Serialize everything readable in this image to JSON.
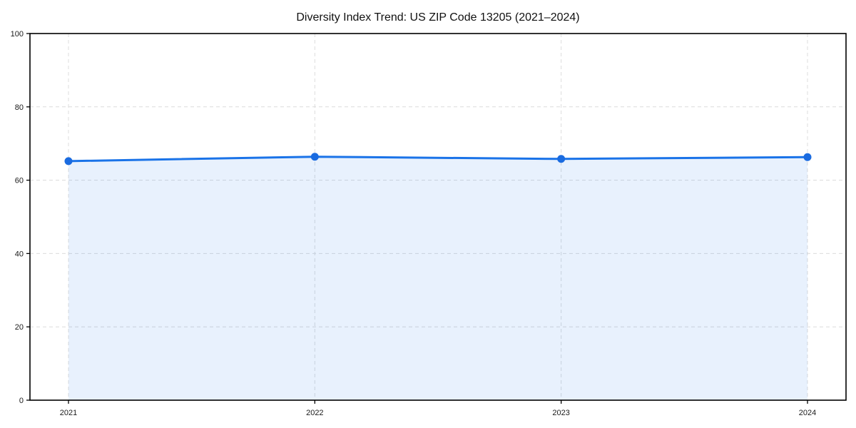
{
  "chart_data": {
    "type": "area",
    "title": "Diversity Index Trend: US ZIP Code 13205 (2021–2024)",
    "categories": [
      "2021",
      "2022",
      "2023",
      "2024"
    ],
    "series": [
      {
        "name": "Diversity Index",
        "values": [
          65.2,
          66.4,
          65.8,
          66.3
        ]
      }
    ],
    "xlabel": "",
    "ylabel": "",
    "ylim": [
      0,
      100
    ],
    "y_ticks": [
      0,
      20,
      40,
      60,
      80,
      100
    ],
    "grid": true,
    "grid_style": "dashed",
    "legend": false,
    "frame": true,
    "marker": "circle",
    "colors": {
      "line": "#1a73e8",
      "marker": "#1a6be0",
      "area_fill": "rgba(26, 115, 232, 0.10)",
      "gridline": "#dcdcdc",
      "frame": "#000000",
      "title_text": "#111111",
      "tick_text": "#1a1a1a",
      "background": "#ffffff"
    }
  }
}
